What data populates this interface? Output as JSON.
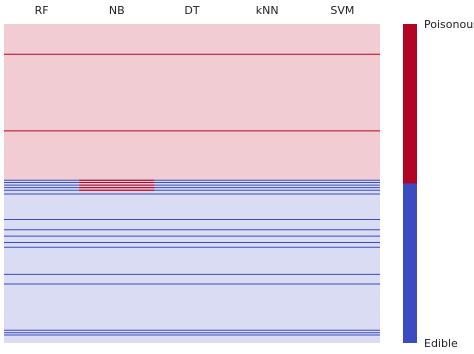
{
  "chart_data": {
    "type": "heatmap",
    "x_categories": [
      "RF",
      "NB",
      "DT",
      "kNN",
      "SVM"
    ],
    "colorbar_labels": {
      "top": "Poisonous",
      "bottom": "Edible"
    },
    "colors": {
      "poisonous": "#b40426",
      "edible": "#3b4cc0",
      "poisonous_background": "#f2ccd3",
      "edible_background": "#d9dcf2"
    },
    "row_range": [
      0,
      1000
    ],
    "bands": [
      {
        "from": 0,
        "to": 490,
        "label": "Poisonous"
      },
      {
        "from": 490,
        "to": 1000,
        "label": "Edible"
      }
    ],
    "highlighted_block": {
      "columns": [
        "NB"
      ],
      "from": 490,
      "to": 528,
      "label": "Poisonous"
    },
    "rows": [
      {
        "row": 95,
        "label": "Poisonous",
        "columns": "all"
      },
      {
        "row": 335,
        "label": "Poisonous",
        "columns": "all"
      },
      {
        "row": 490,
        "label": "Edible",
        "columns": "all"
      },
      {
        "row": 497,
        "label": "Edible",
        "columns": "all"
      },
      {
        "row": 505,
        "label": "Edible",
        "columns": "all"
      },
      {
        "row": 513,
        "label": "Edible",
        "columns": "all"
      },
      {
        "row": 521,
        "label": "Edible",
        "columns": "all"
      },
      {
        "row": 533,
        "label": "Edible",
        "columns": "all"
      },
      {
        "row": 613,
        "label": "Edible",
        "columns": "all"
      },
      {
        "row": 645,
        "label": "Edible",
        "columns": "all"
      },
      {
        "row": 665,
        "label": "Edible",
        "columns": "all"
      },
      {
        "row": 685,
        "label": "Edible",
        "columns": "all"
      },
      {
        "row": 700,
        "label": "Edible",
        "columns": "all"
      },
      {
        "row": 785,
        "label": "Edible",
        "columns": "all"
      },
      {
        "row": 815,
        "label": "Edible",
        "columns": "all"
      },
      {
        "row": 960,
        "label": "Edible",
        "columns": "all"
      },
      {
        "row": 968,
        "label": "Edible",
        "columns": "all"
      },
      {
        "row": 975,
        "label": "Edible",
        "columns": "all"
      }
    ]
  }
}
